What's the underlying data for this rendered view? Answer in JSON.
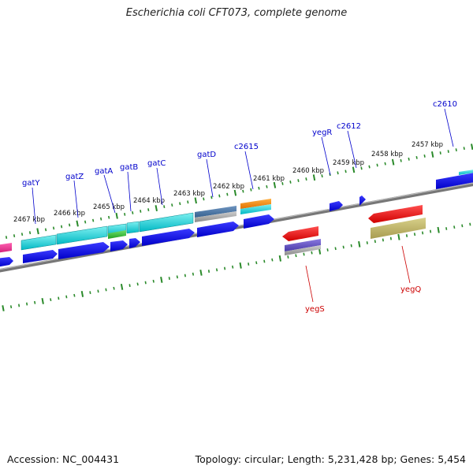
{
  "title": "Escherichia coli CFT073, complete genome",
  "footer": {
    "accession": "Accession: NC_004431",
    "topology": "Topology: circular; Length: 5,231,428 bp; Genes: 5,454"
  },
  "colors": {
    "forward_label": "#0000cc",
    "reverse_label": "#cc0000",
    "backbone": "#888888",
    "tick": "#2a8a2a"
  },
  "scale_labels": [
    "2467 kbp",
    "2466 kbp",
    "2465 kbp",
    "2464 kbp",
    "2463 kbp",
    "2462 kbp",
    "2461 kbp",
    "2460 kbp",
    "2459 kbp",
    "2458 kbp",
    "2457 kbp"
  ],
  "gene_labels_forward": [
    "gatY",
    "gatZ",
    "gatA",
    "gatB",
    "gatC",
    "gatD",
    "c2615",
    "yegR",
    "c2612",
    "c2610"
  ],
  "gene_labels_reverse": [
    "yegS",
    "yegQ"
  ]
}
